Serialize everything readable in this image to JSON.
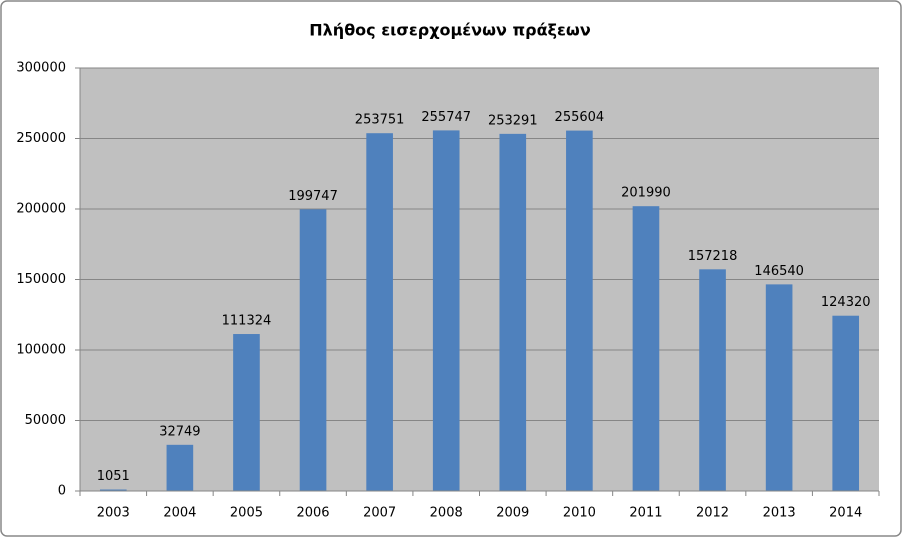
{
  "chart_data": {
    "type": "bar",
    "title": "Πλήθος εισερχομένων πράξεων",
    "categories": [
      "2003",
      "2004",
      "2005",
      "2006",
      "2007",
      "2008",
      "2009",
      "2010",
      "2011",
      "2012",
      "2013",
      "2014"
    ],
    "values": [
      1051,
      32749,
      111324,
      199747,
      253751,
      255747,
      253291,
      255604,
      201990,
      157218,
      146540,
      124320
    ],
    "color": "#4f81bd",
    "ylim": [
      0,
      300000
    ],
    "yticks": [
      0,
      50000,
      100000,
      150000,
      200000,
      250000,
      300000
    ],
    "grid": true
  }
}
